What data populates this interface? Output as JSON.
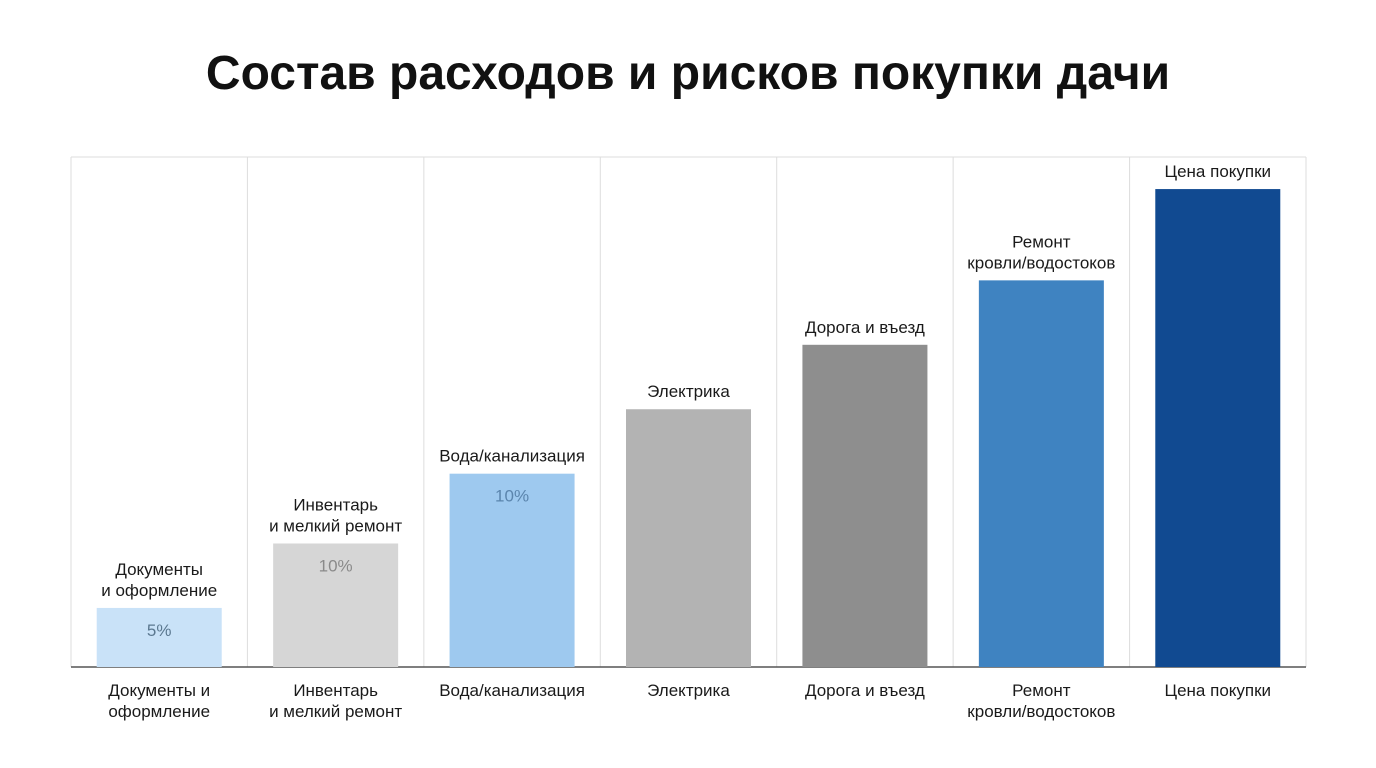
{
  "chart_data": {
    "type": "bar",
    "title": "Состав расходов и рисков покупки дачи",
    "xlabel": "",
    "ylabel": "",
    "ylim": [
      0,
      100
    ],
    "grid": "vertical-columns",
    "categories": [
      "Документы и оформление",
      "Инвентарь и мелкий ремонт",
      "Вода/канализация",
      "Электрика",
      "Дорога и въезд",
      "Ремонт кровли/водостоков",
      "Цена покупки"
    ],
    "tick_labels": [
      [
        "Документы и",
        "оформление"
      ],
      [
        "Инвентарь",
        "и мелкий ремонт"
      ],
      [
        "Вода/канализация"
      ],
      [
        "Электрика"
      ],
      [
        "Дорога и въезд"
      ],
      [
        "Ремонт",
        "кровли/водостоков"
      ],
      [
        "Цена покупки"
      ]
    ],
    "bar_labels": [
      [
        "Документы",
        "и оформление"
      ],
      [
        "Инвентарь",
        "и мелкий ремонт"
      ],
      [
        "Вода/канализация"
      ],
      [
        "Электрика"
      ],
      [
        "Дорога и въезд"
      ],
      [
        "Ремонт",
        "кровли/водостоков"
      ],
      [
        "Цена покупки"
      ]
    ],
    "values": [
      11,
      23,
      36,
      48,
      60,
      72,
      89
    ],
    "data_labels": [
      "5%",
      "10%",
      "10%",
      "",
      "",
      "",
      ""
    ],
    "colors": [
      "#c9e2f8",
      "#d6d6d6",
      "#9ec9ef",
      "#b3b3b3",
      "#8e8e8e",
      "#3f83c1",
      "#114a91"
    ],
    "data_label_colors": [
      "#5b7890",
      "#8a8a8a",
      "#5b85ad",
      "",
      "",
      "",
      ""
    ]
  }
}
